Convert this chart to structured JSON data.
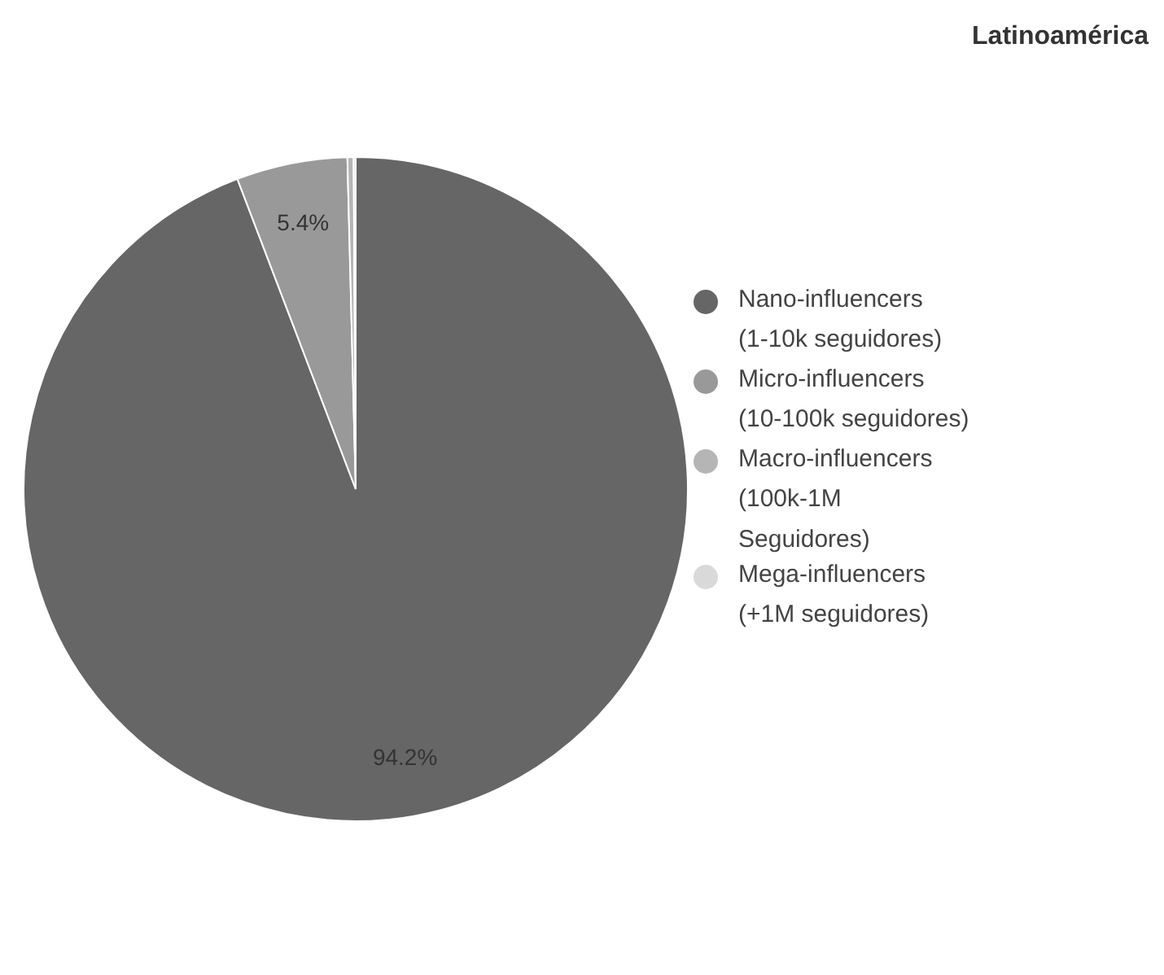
{
  "chart_data": {
    "type": "pie",
    "title": "Latinoamérica",
    "categories": [
      "Nano-influencers\n(1-10k seguidores)",
      "Micro-influencers\n(10-100k seguidores)",
      "Macro-influencers\n(100k-1M\nSeguidores)",
      "Mega-influencers\n(+1M seguidores)"
    ],
    "values": [
      94.2,
      5.4,
      0.3,
      0.1
    ],
    "colors": [
      "#666666",
      "#999999",
      "#b5b5b5",
      "#d9d9d9"
    ],
    "value_labels": [
      "94.2%",
      "5.4%",
      null,
      null
    ],
    "legend": "right"
  }
}
